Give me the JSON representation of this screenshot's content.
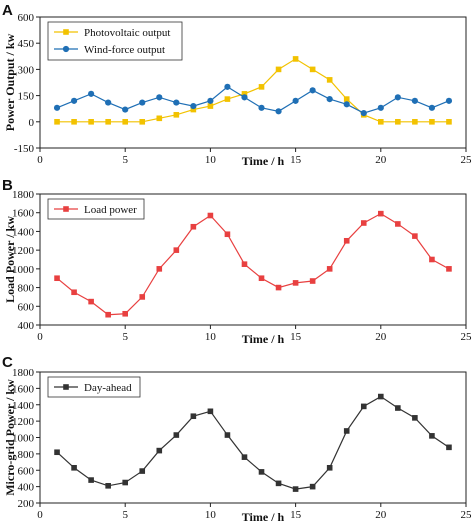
{
  "chart_data": [
    {
      "panel": "A",
      "type": "line",
      "xlabel": "Time / h",
      "ylabel": "Power Output / kw",
      "xlim": [
        0,
        25
      ],
      "ylim": [
        -150,
        600
      ],
      "xticks": [
        0,
        5,
        10,
        15,
        20,
        25
      ],
      "yticks": [
        -150,
        0,
        150,
        300,
        450,
        600
      ],
      "legend_position": "top-left",
      "series": [
        {
          "name": "Photovoltaic output",
          "color": "#f2c200",
          "marker": "square",
          "x": [
            1,
            2,
            3,
            4,
            5,
            6,
            7,
            8,
            9,
            10,
            11,
            12,
            13,
            14,
            15,
            16,
            17,
            18,
            19,
            20,
            21,
            22,
            23,
            24
          ],
          "y": [
            0,
            0,
            0,
            0,
            0,
            0,
            20,
            40,
            70,
            90,
            130,
            160,
            200,
            300,
            360,
            300,
            240,
            130,
            40,
            0,
            0,
            0,
            0,
            0
          ]
        },
        {
          "name": "Wind-force output",
          "color": "#1f6fb5",
          "marker": "circle",
          "x": [
            1,
            2,
            3,
            4,
            5,
            6,
            7,
            8,
            9,
            10,
            11,
            12,
            13,
            14,
            15,
            16,
            17,
            18,
            19,
            20,
            21,
            22,
            23,
            24
          ],
          "y": [
            80,
            120,
            160,
            110,
            70,
            110,
            140,
            110,
            90,
            120,
            200,
            140,
            80,
            60,
            120,
            180,
            130,
            100,
            50,
            80,
            140,
            120,
            80,
            120
          ]
        }
      ]
    },
    {
      "panel": "B",
      "type": "line",
      "xlabel": "Time / h",
      "ylabel": "Load Power / kw",
      "xlim": [
        0,
        25
      ],
      "ylim": [
        400,
        1800
      ],
      "xticks": [
        0,
        5,
        10,
        15,
        20,
        25
      ],
      "yticks": [
        400,
        600,
        800,
        1000,
        1200,
        1400,
        1600,
        1800
      ],
      "legend_position": "top-left",
      "series": [
        {
          "name": "Load power",
          "color": "#e84040",
          "marker": "square",
          "x": [
            1,
            2,
            3,
            4,
            5,
            6,
            7,
            8,
            9,
            10,
            11,
            12,
            13,
            14,
            15,
            16,
            17,
            18,
            19,
            20,
            21,
            22,
            23,
            24
          ],
          "y": [
            900,
            750,
            650,
            510,
            520,
            700,
            1000,
            1200,
            1450,
            1570,
            1370,
            1050,
            900,
            800,
            850,
            870,
            1000,
            1300,
            1490,
            1590,
            1480,
            1350,
            1100,
            1000
          ]
        }
      ]
    },
    {
      "panel": "C",
      "type": "line",
      "xlabel": "Time / h",
      "ylabel": "Micro-grid Power / kw",
      "xlim": [
        0,
        25
      ],
      "ylim": [
        200,
        1800
      ],
      "xticks": [
        0,
        5,
        10,
        15,
        20,
        25
      ],
      "yticks": [
        200,
        400,
        600,
        800,
        1000,
        1200,
        1400,
        1600,
        1800
      ],
      "legend_position": "top-left",
      "series": [
        {
          "name": "Day-ahead",
          "color": "#333333",
          "marker": "square",
          "x": [
            1,
            2,
            3,
            4,
            5,
            6,
            7,
            8,
            9,
            10,
            11,
            12,
            13,
            14,
            15,
            16,
            17,
            18,
            19,
            20,
            21,
            22,
            23,
            24
          ],
          "y": [
            820,
            630,
            480,
            410,
            450,
            590,
            840,
            1030,
            1260,
            1320,
            1030,
            760,
            580,
            440,
            370,
            400,
            630,
            1080,
            1380,
            1500,
            1360,
            1240,
            1020,
            880
          ]
        }
      ]
    }
  ]
}
